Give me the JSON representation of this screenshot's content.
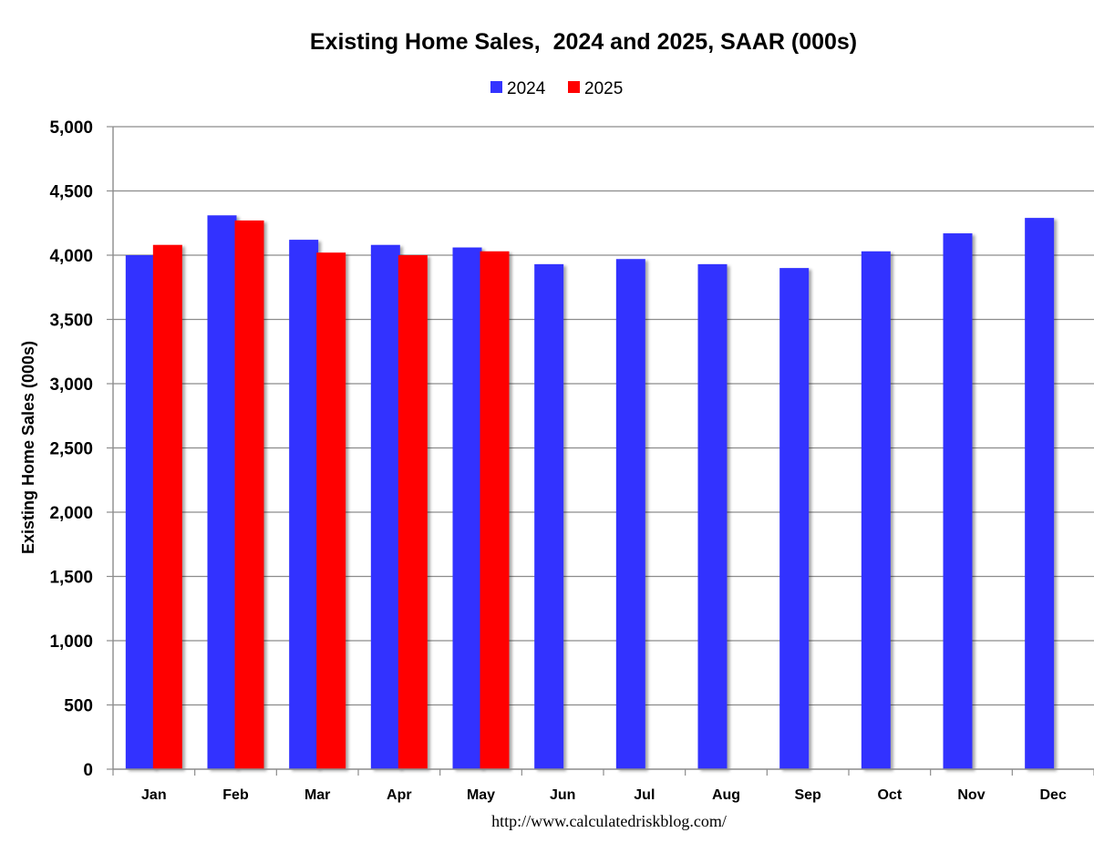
{
  "chart_data": {
    "type": "bar",
    "title": "Existing Home Sales,  2024 and 2025, SAAR (000s)",
    "ylabel": "Existing Home Sales (000s)",
    "xlabel": "",
    "source": "http://www.calculatedriskblog.com/",
    "categories": [
      "Jan",
      "Feb",
      "Mar",
      "Apr",
      "May",
      "Jun",
      "Jul",
      "Aug",
      "Sep",
      "Oct",
      "Nov",
      "Dec"
    ],
    "series": [
      {
        "name": "2024",
        "color": "#3333ff",
        "values": [
          4000,
          4310,
          4120,
          4080,
          4060,
          3930,
          3970,
          3930,
          3900,
          4030,
          4170,
          4290
        ]
      },
      {
        "name": "2025",
        "color": "#ff0000",
        "values": [
          4080,
          4270,
          4020,
          4000,
          4030,
          null,
          null,
          null,
          null,
          null,
          null,
          null
        ]
      }
    ],
    "ylim": [
      0,
      5000
    ],
    "yticks": [
      "0",
      "500",
      "1,000",
      "1,500",
      "2,000",
      "2,500",
      "3,000",
      "3,500",
      "4,000",
      "4,500",
      "5,000"
    ],
    "grid": true,
    "legend_position": "top-center"
  }
}
